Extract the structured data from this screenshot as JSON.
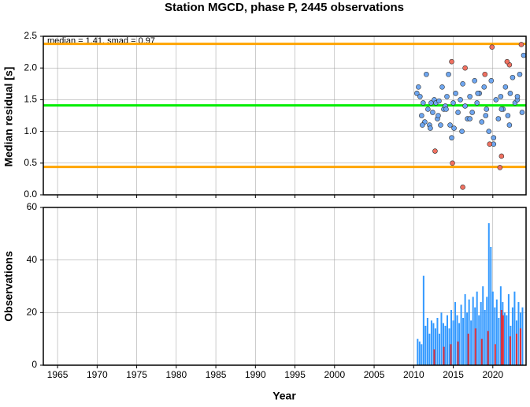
{
  "chart_data": [
    {
      "type": "scatter",
      "title": "Station MGCD, phase P, 2445 observations",
      "ylabel": "Median residual [s]",
      "annotation": "median = 1.41, smad = 0.97",
      "xlim": [
        1963.2,
        2024.2
      ],
      "xticks": [
        1965,
        1970,
        1975,
        1980,
        1985,
        1990,
        1995,
        2000,
        2005,
        2010,
        2015,
        2020
      ],
      "ylim": [
        0,
        2.5
      ],
      "yticks": [
        {
          "value": 0,
          "label": "0.0"
        },
        0.5,
        {
          "value": 1,
          "label": "1.0"
        },
        1.5,
        {
          "value": 2,
          "label": "2.0"
        },
        2.5
      ],
      "grid": true,
      "hlines": [
        {
          "value": 2.38,
          "color": "#ffa500"
        },
        {
          "value": 1.41,
          "color": "#00ee00"
        },
        {
          "value": 0.44,
          "color": "#ffa500"
        }
      ],
      "series": [
        {
          "color": "#6ea6f0",
          "x": [
            2010.4,
            2010.6,
            2010.8,
            2011.0,
            2011.2,
            2011.4,
            2011.6,
            2011.8,
            2012.0,
            2012.2,
            2012.4,
            2012.6,
            2012.8,
            2013.0,
            2013.2,
            2013.4,
            2013.6,
            2013.8,
            2014.0,
            2014.2,
            2014.4,
            2014.6,
            2014.8,
            2015.0,
            2015.3,
            2015.6,
            2015.9,
            2016.2,
            2016.5,
            2016.8,
            2017.1,
            2017.4,
            2017.7,
            2018.0,
            2018.3,
            2018.6,
            2018.9,
            2019.2,
            2019.5,
            2019.8,
            2020.1,
            2020.4,
            2020.7,
            2021.0,
            2021.3,
            2021.6,
            2021.9,
            2022.2,
            2022.5,
            2022.8,
            2023.1,
            2023.4,
            2023.7,
            2023.9,
            2011.1,
            2012.1,
            2013.1,
            2014.1,
            2015.1,
            2016.1,
            2017.1,
            2018.1,
            2019.1,
            2020.1,
            2021.1,
            2022.1,
            2023.1
          ],
          "values": [
            1.6,
            1.7,
            1.55,
            1.25,
            1.45,
            1.15,
            1.9,
            1.35,
            1.1,
            1.45,
            1.3,
            1.5,
            1.45,
            1.2,
            1.48,
            1.1,
            1.7,
            1.35,
            1.4,
            1.55,
            1.9,
            1.1,
            0.9,
            1.45,
            1.6,
            1.3,
            1.5,
            1.75,
            1.4,
            1.2,
            1.55,
            1.3,
            1.8,
            1.45,
            1.6,
            1.15,
            1.7,
            1.35,
            1.0,
            1.8,
            0.9,
            1.5,
            1.2,
            1.55,
            1.35,
            1.7,
            1.25,
            1.6,
            1.85,
            1.45,
            1.5,
            1.9,
            1.3,
            2.2,
            1.1,
            1.05,
            1.25,
            1.35,
            1.05,
            1.0,
            1.2,
            1.6,
            1.25,
            0.8,
            1.35,
            1.1,
            1.55
          ]
        },
        {
          "color": "#f07060",
          "x": [
            2014.8,
            2016.5,
            2019.9,
            2022.1,
            2023.6,
            2021.8,
            2019.0,
            2012.7,
            2014.9,
            2016.2,
            2020.9,
            2021.1,
            2019.6
          ],
          "values": [
            2.1,
            2.0,
            2.33,
            2.05,
            2.37,
            2.1,
            1.9,
            0.69,
            0.5,
            0.12,
            0.43,
            0.61,
            0.8
          ]
        }
      ]
    },
    {
      "type": "bar",
      "ylabel": "Observations",
      "xlabel": "Year",
      "xlim": [
        1963.2,
        2024.2
      ],
      "xticks": [
        1965,
        1970,
        1975,
        1980,
        1985,
        1990,
        1995,
        2000,
        2005,
        2010,
        2015,
        2020
      ],
      "ylim": [
        0,
        60
      ],
      "yticks": [
        0,
        20,
        40,
        60
      ],
      "grid": true,
      "series": [
        {
          "color": "#3399ff",
          "x": [
            2010.5,
            2010.75,
            2011,
            2011.25,
            2011.5,
            2011.75,
            2012,
            2012.25,
            2012.5,
            2012.75,
            2013,
            2013.25,
            2013.5,
            2013.75,
            2014,
            2014.25,
            2014.5,
            2014.75,
            2015,
            2015.25,
            2015.5,
            2015.75,
            2016,
            2016.25,
            2016.5,
            2016.75,
            2017,
            2017.25,
            2017.5,
            2017.75,
            2018,
            2018.25,
            2018.5,
            2018.75,
            2019,
            2019.25,
            2019.5,
            2019.75,
            2020,
            2020.25,
            2020.5,
            2020.75,
            2021,
            2021.25,
            2021.5,
            2021.75,
            2022,
            2022.25,
            2022.5,
            2022.75,
            2023,
            2023.25,
            2023.5,
            2023.75
          ],
          "values": [
            10,
            9,
            8,
            34,
            15,
            18,
            12,
            17,
            16,
            14,
            18,
            12,
            20,
            16,
            15,
            19,
            14,
            21,
            17,
            24,
            19,
            16,
            23,
            18,
            27,
            20,
            25,
            17,
            26,
            22,
            28,
            19,
            24,
            30,
            21,
            26,
            54,
            45,
            28,
            22,
            25,
            18,
            30,
            24,
            20,
            19,
            27,
            15,
            22,
            28,
            17,
            24,
            20,
            22
          ]
        },
        {
          "color": "#e0303a",
          "x": [
            2012.6,
            2013.8,
            2014.7,
            2015.6,
            2016.9,
            2017.8,
            2018.6,
            2019.4,
            2020.3,
            2021.1,
            2021.3,
            2022.2,
            2023.0,
            2023.5
          ],
          "values": [
            6,
            7,
            8,
            9,
            12,
            14,
            10,
            13,
            8,
            21,
            19,
            11,
            12,
            14
          ]
        }
      ]
    }
  ]
}
